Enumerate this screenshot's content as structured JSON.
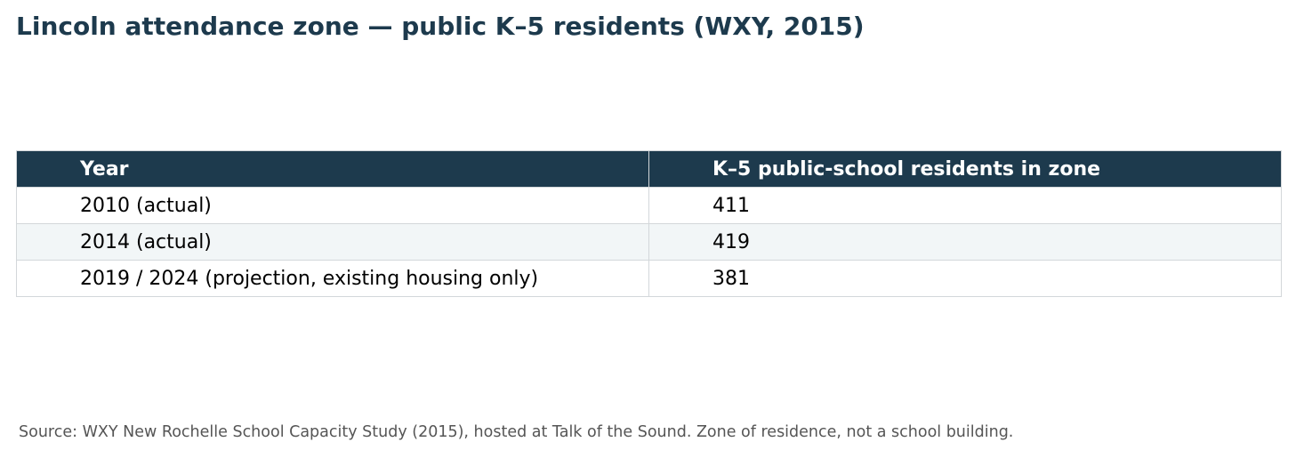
{
  "title": "Lincoln attendance zone — public K–5 residents (WXY, 2015)",
  "source": "Source: WXY New Rochelle School Capacity Study (2015), hosted at Talk of the Sound. Zone of residence, not a school building.",
  "colors": {
    "header_bg": "#1d3a4d",
    "header_text": "#ffffff",
    "title_text": "#1d3a4d",
    "alt_row_bg": "#f2f6f7",
    "border": "#d3d7da",
    "source_text": "#555555"
  },
  "chart_data": {
    "type": "table",
    "title": "Lincoln attendance zone — public K–5 residents (WXY, 2015)",
    "columns": [
      "Year",
      "K–5 public-school residents in zone"
    ],
    "rows": [
      [
        "2010 (actual)",
        "411"
      ],
      [
        "2014 (actual)",
        "419"
      ],
      [
        "2019 / 2024 (projection, existing housing only)",
        "381"
      ]
    ],
    "values": [
      411,
      419,
      381
    ]
  }
}
